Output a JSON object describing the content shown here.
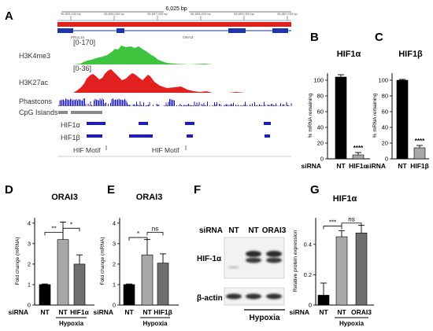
{
  "panels": {
    "A": "A",
    "B": "B",
    "C": "C",
    "D": "D",
    "E": "E",
    "F": "F",
    "G": "G"
  },
  "browser": {
    "span": "6,025 bp",
    "ruler": [
      "56,855,000 bp",
      "56,856,000 bp",
      "56,857,000 bp",
      "56,858,000 bp",
      "56,859,000 bp",
      "56,860,000 bp"
    ],
    "genes": [
      "PRUL15",
      "ORAI3"
    ],
    "tracks": {
      "h3k4me3": "H3K4me3",
      "h3k4me3_range": "[0-170]",
      "h3k27ac": "H3K27ac",
      "h3k27ac_range": "[0-36]",
      "phastcons": "Phastcons",
      "cpg": "CpG Islands",
      "hif1a": "HIF1α",
      "hif1b": "HIF1β"
    },
    "motif_1": "HIF Motif",
    "motif_2": "HIF Motif",
    "colors": {
      "h3k4me3": "#3ec43e",
      "h3k27ac": "#e32020",
      "phastcons": "#1c1cb0",
      "peaks": "#1c1ccc",
      "cpg": "#8a8a8a",
      "gene": "#1f35a8",
      "chrom": "#e21f1f"
    }
  },
  "western": {
    "sirna_label": "siRNA",
    "lanes": [
      "NT",
      "NT",
      "ORAI3"
    ],
    "bands": {
      "hif": "HIF-1α",
      "actin": "β-actin"
    },
    "hypoxia": "Hypoxia"
  },
  "chart_data": [
    {
      "panel": "B",
      "type": "bar",
      "title": "HIF1α",
      "ylabel": "% mRNA remaining",
      "ylim": [
        0,
        110
      ],
      "yticks": [
        0,
        20,
        40,
        60,
        80,
        100
      ],
      "sirna_label": "siRNA",
      "categories": [
        "NT",
        "HIF1α"
      ],
      "values": [
        104,
        5
      ],
      "errors": [
        3,
        3
      ],
      "colors": [
        "#000000",
        "#a8a8a8"
      ],
      "annotations": [
        {
          "category": 1,
          "text": "****"
        }
      ]
    },
    {
      "panel": "C",
      "type": "bar",
      "title": "HIF1β",
      "ylabel": "% mRNA remaining",
      "ylim": [
        0,
        110
      ],
      "yticks": [
        0,
        20,
        40,
        60,
        80,
        100
      ],
      "sirna_label": "siRNA",
      "categories": [
        "NT",
        "HIF1β"
      ],
      "values": [
        100,
        14
      ],
      "errors": [
        1,
        3
      ],
      "colors": [
        "#000000",
        "#a8a8a8"
      ],
      "annotations": [
        {
          "category": 1,
          "text": "****"
        }
      ]
    },
    {
      "panel": "D",
      "type": "bar",
      "title": "ORAI3",
      "ylabel": "Fold change (mRNA)",
      "ylim": [
        0,
        4.3
      ],
      "yticks": [
        0,
        1,
        2,
        3,
        4
      ],
      "sirna_label": "siRNA",
      "categories": [
        "NT",
        "NT",
        "HIF1α"
      ],
      "values": [
        1.0,
        3.2,
        2.0
      ],
      "errors": [
        0.03,
        0.85,
        0.45
      ],
      "colors": [
        "#000000",
        "#a8a8a8",
        "#6e6e6e"
      ],
      "group_label": "Hypoxia",
      "group_start": 1,
      "brackets": [
        {
          "from": 0,
          "to": 1,
          "level": 3.55,
          "text": "**"
        },
        {
          "from": 1,
          "to": 2,
          "level": 3.75,
          "text": "*"
        }
      ]
    },
    {
      "panel": "E",
      "type": "bar",
      "title": "ORAI3",
      "ylabel": "Fold change (mRNA)",
      "ylim": [
        0,
        4.3
      ],
      "yticks": [
        0,
        1,
        2,
        3,
        4
      ],
      "sirna_label": "siRNA",
      "categories": [
        "NT",
        "NT",
        "HIF1β"
      ],
      "values": [
        1.0,
        2.45,
        2.05
      ],
      "errors": [
        0.03,
        0.75,
        0.45
      ],
      "colors": [
        "#000000",
        "#a8a8a8",
        "#6e6e6e"
      ],
      "group_label": "Hypoxia",
      "group_start": 1,
      "brackets": [
        {
          "from": 0,
          "to": 1,
          "level": 3.3,
          "text": "*"
        },
        {
          "from": 1,
          "to": 2,
          "level": 3.55,
          "text": "ns"
        }
      ]
    },
    {
      "panel": "G",
      "type": "bar",
      "title": "HIF1α",
      "ylabel": "Relative protein expression",
      "ylim": [
        0,
        0.58
      ],
      "yticks": [
        0,
        0.2,
        0.4
      ],
      "sirna_label": "siRNA",
      "categories": [
        "NT",
        "NT",
        "ORAI3"
      ],
      "values": [
        0.065,
        0.45,
        0.475
      ],
      "errors": [
        0.08,
        0.04,
        0.05
      ],
      "colors": [
        "#000000",
        "#a8a8a8",
        "#6e6e6e"
      ],
      "group_label": "Hypoxia",
      "group_start": 1,
      "brackets": [
        {
          "from": 0,
          "to": 1,
          "level": 0.52,
          "text": "***"
        },
        {
          "from": 1,
          "to": 2,
          "level": 0.54,
          "text": "ns"
        }
      ]
    }
  ]
}
